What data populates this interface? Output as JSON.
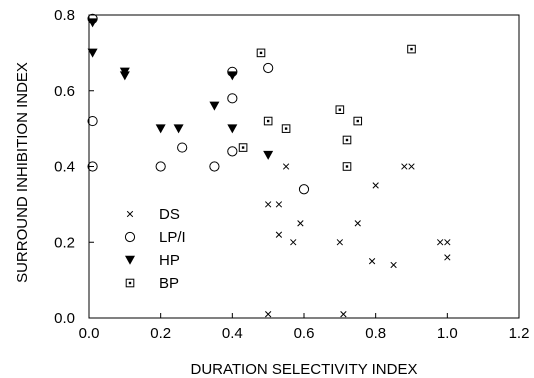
{
  "chart_data": {
    "type": "scatter",
    "title": "",
    "xlabel": "DURATION SELECTIVITY INDEX",
    "ylabel": "SURROUND INHIBITION INDEX",
    "xlim": [
      0,
      1.2
    ],
    "ylim": [
      0,
      0.8
    ],
    "xticks": [
      "0.0",
      "0.2",
      "0.4",
      "0.6",
      "0.8",
      "1.0",
      "1.2"
    ],
    "yticks": [
      "0.0",
      "0.2",
      "0.4",
      "0.6",
      "0.8"
    ],
    "grid": false,
    "legend_position": "lower-left",
    "series": [
      {
        "name": "DS",
        "marker": "x",
        "points": [
          [
            0.5,
            0.01
          ],
          [
            0.71,
            0.01
          ],
          [
            0.5,
            0.3
          ],
          [
            0.53,
            0.3
          ],
          [
            0.53,
            0.22
          ],
          [
            0.57,
            0.2
          ],
          [
            0.59,
            0.25
          ],
          [
            0.55,
            0.4
          ],
          [
            0.7,
            0.2
          ],
          [
            0.75,
            0.25
          ],
          [
            0.79,
            0.15
          ],
          [
            0.85,
            0.14
          ],
          [
            0.8,
            0.35
          ],
          [
            0.88,
            0.4
          ],
          [
            0.9,
            0.4
          ],
          [
            0.98,
            0.2
          ],
          [
            1.0,
            0.2
          ],
          [
            1.0,
            0.16
          ]
        ]
      },
      {
        "name": "LP/I",
        "marker": "open-circle",
        "points": [
          [
            0.01,
            0.79
          ],
          [
            0.01,
            0.52
          ],
          [
            0.01,
            0.4
          ],
          [
            0.2,
            0.4
          ],
          [
            0.26,
            0.45
          ],
          [
            0.35,
            0.4
          ],
          [
            0.4,
            0.65
          ],
          [
            0.4,
            0.58
          ],
          [
            0.4,
            0.44
          ],
          [
            0.5,
            0.66
          ],
          [
            0.6,
            0.34
          ]
        ]
      },
      {
        "name": "HP",
        "marker": "filled-triangle-down",
        "points": [
          [
            0.01,
            0.78
          ],
          [
            0.01,
            0.7
          ],
          [
            0.1,
            0.65
          ],
          [
            0.1,
            0.64
          ],
          [
            0.2,
            0.5
          ],
          [
            0.25,
            0.5
          ],
          [
            0.35,
            0.56
          ],
          [
            0.4,
            0.64
          ],
          [
            0.4,
            0.5
          ],
          [
            0.5,
            0.43
          ]
        ]
      },
      {
        "name": "BP",
        "marker": "boxed-dot",
        "points": [
          [
            0.48,
            0.7
          ],
          [
            0.43,
            0.45
          ],
          [
            0.5,
            0.52
          ],
          [
            0.55,
            0.5
          ],
          [
            0.7,
            0.55
          ],
          [
            0.72,
            0.47
          ],
          [
            0.72,
            0.4
          ],
          [
            0.75,
            0.52
          ],
          [
            0.9,
            0.71
          ]
        ]
      }
    ]
  }
}
